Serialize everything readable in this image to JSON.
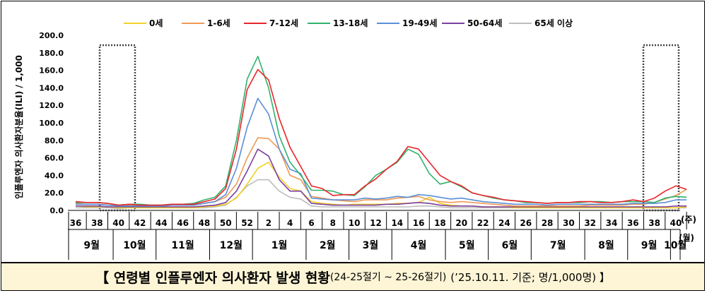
{
  "chart_data": {
    "type": "line",
    "ylabel": "인플루엔자 의사환자분율(ILI) / 1,000",
    "ylim": [
      0,
      200
    ],
    "yticks": [
      "0.0",
      "20.0",
      "40.0",
      "60.0",
      "80.0",
      "100.0",
      "120.0",
      "140.0",
      "160.0",
      "180.0",
      "200.0"
    ],
    "week_unit": "(주)",
    "month_unit": "(월)",
    "week_labels": [
      "36",
      "38",
      "40",
      "42",
      "44",
      "46",
      "48",
      "50",
      "52",
      "2",
      "4",
      "6",
      "8",
      "10",
      "12",
      "14",
      "16",
      "18",
      "20",
      "22",
      "24",
      "26",
      "28",
      "30",
      "32",
      "34",
      "36",
      "38",
      "40"
    ],
    "months": [
      {
        "label": "9월",
        "from": 0,
        "to": 4
      },
      {
        "label": "10월",
        "from": 4,
        "to": 8
      },
      {
        "label": "11월",
        "from": 8,
        "to": 13
      },
      {
        "label": "12월",
        "from": 13,
        "to": 17
      },
      {
        "label": "1월",
        "from": 17,
        "to": 22
      },
      {
        "label": "2월",
        "from": 22,
        "to": 26
      },
      {
        "label": "3월",
        "from": 26,
        "to": 30
      },
      {
        "label": "4월",
        "from": 30,
        "to": 35
      },
      {
        "label": "5월",
        "from": 35,
        "to": 39
      },
      {
        "label": "6월",
        "from": 39,
        "to": 43
      },
      {
        "label": "7월",
        "from": 43,
        "to": 48
      },
      {
        "label": "8월",
        "from": 48,
        "to": 52
      },
      {
        "label": "9월",
        "from": 52,
        "to": 56
      },
      {
        "label": "10월",
        "from": 56,
        "to": 58
      }
    ],
    "x": [
      "36",
      "37",
      "38",
      "39",
      "40",
      "41",
      "42",
      "43",
      "44",
      "45",
      "46",
      "47",
      "48",
      "49",
      "50",
      "51",
      "52",
      "1",
      "2",
      "3",
      "4",
      "5",
      "6",
      "7",
      "8",
      "9",
      "10",
      "11",
      "12",
      "13",
      "14",
      "15",
      "16",
      "17",
      "18",
      "19",
      "20",
      "21",
      "22",
      "23",
      "24",
      "25",
      "26",
      "27",
      "28",
      "29",
      "30",
      "31",
      "32",
      "33",
      "34",
      "35",
      "36",
      "37",
      "38",
      "39",
      "40",
      "41"
    ],
    "series": [
      {
        "name": "0세",
        "color": "#f2d028",
        "values": [
          5,
          4,
          4,
          4,
          3,
          3,
          3,
          3,
          3,
          3,
          3,
          3,
          4,
          5,
          7,
          14,
          30,
          48,
          55,
          38,
          25,
          22,
          10,
          8,
          7,
          6,
          7,
          7,
          7,
          7,
          8,
          8,
          9,
          15,
          8,
          6,
          5,
          5,
          4,
          4,
          4,
          3,
          3,
          3,
          3,
          3,
          3,
          3,
          3,
          3,
          3,
          3,
          3,
          3,
          3,
          3,
          3,
          4
        ]
      },
      {
        "name": "1-6세",
        "color": "#ef9a55",
        "values": [
          8,
          7,
          7,
          6,
          5,
          6,
          6,
          5,
          5,
          6,
          6,
          6,
          8,
          10,
          15,
          30,
          60,
          83,
          82,
          70,
          40,
          35,
          16,
          14,
          12,
          11,
          10,
          12,
          12,
          12,
          14,
          15,
          16,
          12,
          10,
          9,
          10,
          9,
          8,
          7,
          6,
          5,
          5,
          5,
          5,
          5,
          5,
          5,
          6,
          6,
          6,
          6,
          7,
          7,
          9,
          13,
          17,
          24
        ]
      },
      {
        "name": "7-12세",
        "color": "#e8262b",
        "values": [
          10,
          9,
          9,
          8,
          6,
          7,
          6,
          6,
          6,
          7,
          7,
          7,
          10,
          13,
          25,
          70,
          138,
          161,
          149,
          105,
          72,
          50,
          28,
          25,
          17,
          18,
          18,
          28,
          36,
          47,
          56,
          73,
          70,
          55,
          40,
          33,
          28,
          20,
          17,
          15,
          12,
          11,
          10,
          9,
          8,
          9,
          9,
          10,
          10,
          9,
          9,
          10,
          12,
          10,
          14,
          22,
          28,
          24
        ]
      },
      {
        "name": "13-18세",
        "color": "#2fb36c",
        "values": [
          9,
          9,
          9,
          8,
          6,
          7,
          7,
          6,
          6,
          7,
          7,
          8,
          12,
          15,
          28,
          80,
          150,
          176,
          140,
          85,
          55,
          40,
          23,
          23,
          22,
          18,
          17,
          27,
          40,
          47,
          55,
          70,
          64,
          42,
          30,
          33,
          27,
          20,
          17,
          14,
          12,
          11,
          9,
          9,
          8,
          9,
          9,
          9,
          10,
          10,
          9,
          10,
          10,
          10,
          9,
          14,
          16,
          15
        ]
      },
      {
        "name": "19-49세",
        "color": "#5b8ed6",
        "values": [
          7,
          7,
          7,
          6,
          5,
          5,
          5,
          5,
          5,
          6,
          6,
          6,
          8,
          10,
          18,
          48,
          95,
          128,
          110,
          70,
          47,
          42,
          14,
          13,
          12,
          12,
          12,
          14,
          13,
          14,
          16,
          15,
          18,
          17,
          15,
          13,
          14,
          12,
          10,
          9,
          8,
          7,
          7,
          7,
          6,
          7,
          7,
          7,
          7,
          7,
          7,
          7,
          8,
          8,
          8,
          9,
          12,
          12
        ]
      },
      {
        "name": "50-64세",
        "color": "#7b3f9e",
        "values": [
          5,
          5,
          5,
          4,
          4,
          4,
          4,
          4,
          4,
          4,
          4,
          4,
          5,
          6,
          9,
          22,
          45,
          70,
          62,
          35,
          22,
          22,
          8,
          7,
          6,
          6,
          6,
          6,
          6,
          7,
          7,
          8,
          9,
          8,
          6,
          5,
          5,
          5,
          4,
          4,
          4,
          4,
          4,
          4,
          4,
          4,
          4,
          4,
          4,
          4,
          4,
          4,
          4,
          4,
          4,
          4,
          5,
          5
        ]
      },
      {
        "name": "65세 이상",
        "color": "#bdbdbd",
        "values": [
          3,
          3,
          3,
          3,
          2,
          3,
          3,
          3,
          3,
          3,
          3,
          3,
          3,
          4,
          6,
          15,
          28,
          35,
          35,
          22,
          15,
          13,
          5,
          4,
          4,
          4,
          4,
          4,
          4,
          4,
          4,
          4,
          5,
          5,
          4,
          3,
          3,
          3,
          3,
          3,
          3,
          3,
          3,
          3,
          3,
          3,
          3,
          3,
          3,
          3,
          3,
          3,
          3,
          3,
          3,
          3,
          3,
          3
        ]
      }
    ]
  },
  "caption": {
    "main": "【 연령별 인플루엔자 의사환자 발생 현황",
    "season": "(24-25절기 ~ 25-26절기)",
    "date": "(’25.10.11. 기준; 명/1,000명) 】"
  }
}
